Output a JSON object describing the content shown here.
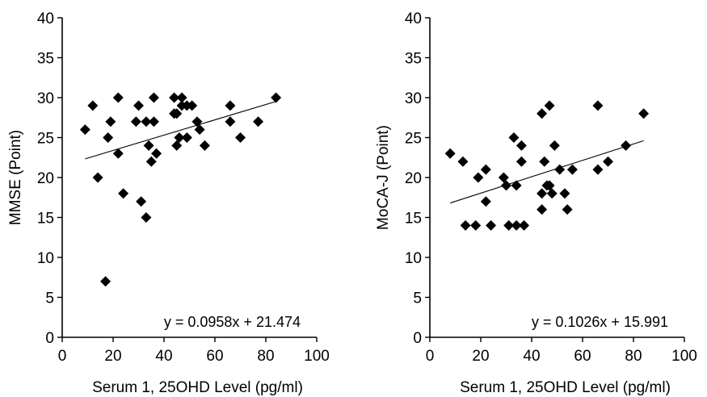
{
  "chart_data": [
    {
      "type": "scatter",
      "title": "",
      "xlabel": "Serum 1, 25OHD Level (pg/ml)",
      "ylabel": "MMSE (Point)",
      "xlim": [
        0,
        100
      ],
      "ylim": [
        0,
        40
      ],
      "xticks": [
        0,
        20,
        40,
        60,
        80,
        100
      ],
      "yticks": [
        0,
        5,
        10,
        15,
        20,
        25,
        30,
        35,
        40
      ],
      "marker": "diamond",
      "marker_color": "#000000",
      "grid": false,
      "legend": "none",
      "points": [
        [
          9,
          26
        ],
        [
          12,
          29
        ],
        [
          14,
          20
        ],
        [
          17,
          7
        ],
        [
          18,
          25
        ],
        [
          19,
          27
        ],
        [
          22,
          30
        ],
        [
          22,
          23
        ],
        [
          24,
          18
        ],
        [
          29,
          27
        ],
        [
          30,
          29
        ],
        [
          31,
          17
        ],
        [
          33,
          15
        ],
        [
          33,
          27
        ],
        [
          34,
          24
        ],
        [
          35,
          22
        ],
        [
          36,
          30
        ],
        [
          36,
          27
        ],
        [
          37,
          23
        ],
        [
          44,
          28
        ],
        [
          44,
          30
        ],
        [
          45,
          28
        ],
        [
          45,
          24
        ],
        [
          46,
          25
        ],
        [
          47,
          30
        ],
        [
          47,
          29
        ],
        [
          49,
          29
        ],
        [
          49,
          25
        ],
        [
          51,
          29
        ],
        [
          53,
          27
        ],
        [
          54,
          26
        ],
        [
          56,
          24
        ],
        [
          66,
          29
        ],
        [
          66,
          27
        ],
        [
          70,
          25
        ],
        [
          77,
          27
        ],
        [
          84,
          30
        ]
      ],
      "trendline": {
        "slope": 0.0958,
        "intercept": 21.474,
        "x_range": [
          9,
          84
        ]
      },
      "equation_label": "y = 0.0958x + 21.474"
    },
    {
      "type": "scatter",
      "title": "",
      "xlabel": "Serum 1, 25OHD Level (pg/ml)",
      "ylabel": "MoCA-J (Point)",
      "xlim": [
        0,
        100
      ],
      "ylim": [
        0,
        40
      ],
      "xticks": [
        0,
        20,
        40,
        60,
        80,
        100
      ],
      "yticks": [
        0,
        5,
        10,
        15,
        20,
        25,
        30,
        35,
        40
      ],
      "marker": "diamond",
      "marker_color": "#000000",
      "grid": false,
      "legend": "none",
      "points": [
        [
          8,
          23
        ],
        [
          13,
          22
        ],
        [
          14,
          14
        ],
        [
          18,
          14
        ],
        [
          19,
          20
        ],
        [
          22,
          21
        ],
        [
          22,
          17
        ],
        [
          24,
          14
        ],
        [
          29,
          20
        ],
        [
          30,
          19
        ],
        [
          31,
          14
        ],
        [
          33,
          25
        ],
        [
          34,
          19
        ],
        [
          34,
          14
        ],
        [
          36,
          24
        ],
        [
          36,
          22
        ],
        [
          37,
          14
        ],
        [
          44,
          28
        ],
        [
          44,
          18
        ],
        [
          44,
          16
        ],
        [
          45,
          22
        ],
        [
          46,
          19
        ],
        [
          47,
          29
        ],
        [
          47,
          19
        ],
        [
          48,
          18
        ],
        [
          49,
          24
        ],
        [
          51,
          21
        ],
        [
          53,
          18
        ],
        [
          54,
          16
        ],
        [
          56,
          21
        ],
        [
          66,
          29
        ],
        [
          66,
          21
        ],
        [
          70,
          22
        ],
        [
          77,
          24
        ],
        [
          84,
          28
        ]
      ],
      "trendline": {
        "slope": 0.1026,
        "intercept": 15.991,
        "x_range": [
          8,
          84
        ]
      },
      "equation_label": "y = 0.1026x + 15.991"
    }
  ]
}
